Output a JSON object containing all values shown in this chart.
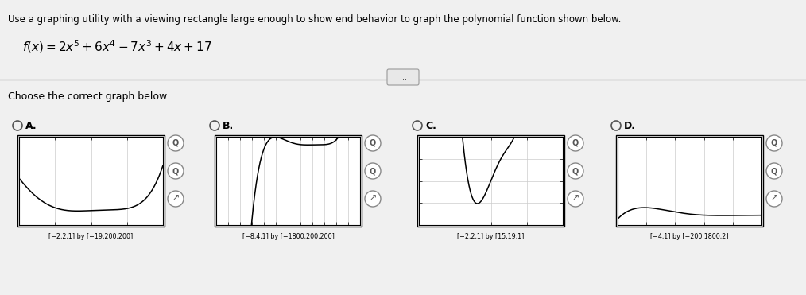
{
  "title_line1": "Use a graphing utility with a viewing rectangle large enough to show end behavior to graph the polynomial function shown below.",
  "function_latex": "$f(x) = 2x^5 + 6x^4 - 7x^3 + 4x + 17$",
  "choose_text": "Choose the correct graph below.",
  "options": [
    "A.",
    "B.",
    "C.",
    "D."
  ],
  "labels": [
    "[−2,2,1] by [−19,200,200]",
    "[−8,4,1] by [−1800,200,200]",
    "[−2,2,1] by [15,19,1]",
    "[−4,1] by [−200,1800,2]"
  ],
  "graphs": [
    {
      "xmin": -2,
      "xmax": 2,
      "ymin": -19,
      "ymax": 200,
      "xticks": [
        -2,
        -1,
        0,
        1,
        2
      ],
      "yticks": []
    },
    {
      "xmin": -8,
      "xmax": 4,
      "ymin": -1800,
      "ymax": 200,
      "xticks": [
        -8,
        -7,
        -6,
        -5,
        -4,
        -3,
        -2,
        -1,
        0,
        1,
        2,
        3,
        4
      ],
      "yticks": []
    },
    {
      "xmin": -2,
      "xmax": 2,
      "ymin": 15,
      "ymax": 19,
      "xticks": [
        -2,
        -1,
        0,
        1,
        2
      ],
      "yticks": [
        15,
        16,
        17,
        18,
        19
      ]
    },
    {
      "xmin": -4,
      "xmax": 1,
      "ymin": -200,
      "ymax": 1800,
      "xticks": [
        -4,
        -3,
        -2,
        -1,
        0,
        1
      ],
      "yticks": []
    }
  ],
  "bg_color": "#c8c8c8",
  "panel_bg": "#f0f0f0",
  "text_color": "#000000",
  "graph_bg": "#ffffff",
  "graph_line_color": "#000000",
  "sep_line_color": "#aaaaaa"
}
